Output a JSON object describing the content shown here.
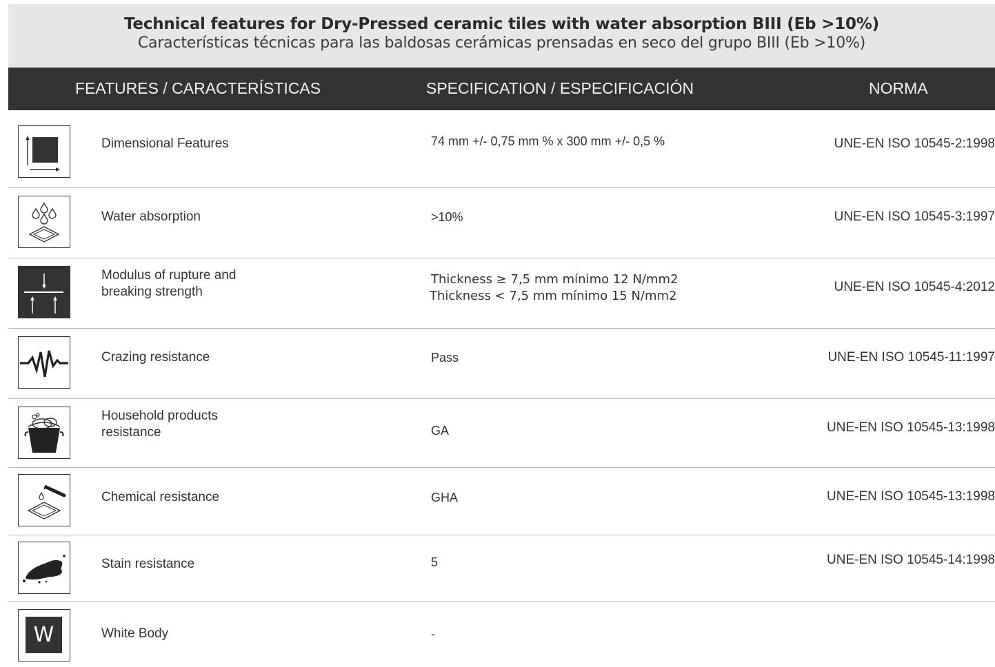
{
  "title": {
    "en": "Technical features for Dry-Pressed ceramic tiles with water absorption BIII (Eb >10%)",
    "es": "Características técnicas para las baldosas cerámicas prensadas en seco del grupo BIII (Eb >10%)"
  },
  "header": {
    "features": "FEATURES / CARACTERÍSTICAS",
    "specification": "SPECIFICATION / ESPECIFICACIÓN",
    "norma": "NORMA"
  },
  "rows": [
    {
      "icon": "dimension-icon",
      "feature": "Dimensional Features",
      "spec": "74 mm +/- 0,75 mm % x 300 mm +/- 0,5 %",
      "norma": "UNE-EN ISO 10545-2:1998"
    },
    {
      "icon": "water-drops-icon",
      "feature": "Water absorption",
      "spec": ">10%",
      "norma": "UNE-EN ISO 10545-3:1997"
    },
    {
      "icon": "pressure-arrows-icon",
      "feature_line1": "Modulus of rupture and",
      "feature_line2": "breaking strength",
      "spec_line1": "Thickness ≥ 7,5 mm mínimo 12 N/mm2",
      "spec_line2": "Thickness < 7,5 mm mínimo 15  N/mm2",
      "norma": "UNE-EN ISO 10545-4:2012"
    },
    {
      "icon": "crack-icon",
      "feature": "Crazing resistance",
      "spec": "Pass",
      "norma": "UNE-EN ISO 10545-11:1997"
    },
    {
      "icon": "bucket-icon",
      "feature_line1": "Household products",
      "feature_line2": "resistance",
      "spec": "GA",
      "norma": "UNE-EN ISO 10545-13:1998"
    },
    {
      "icon": "test-tube-icon",
      "feature": "Chemical resistance",
      "spec": "GHA",
      "norma": "UNE-EN ISO 10545-13:1998"
    },
    {
      "icon": "stain-icon",
      "feature": "Stain resistance",
      "spec": "5",
      "norma": "UNE-EN ISO 10545-14:1998"
    },
    {
      "icon": "white-body-icon",
      "icon_letter": "W",
      "feature": "White Body",
      "spec": "-",
      "norma": ""
    }
  ]
}
